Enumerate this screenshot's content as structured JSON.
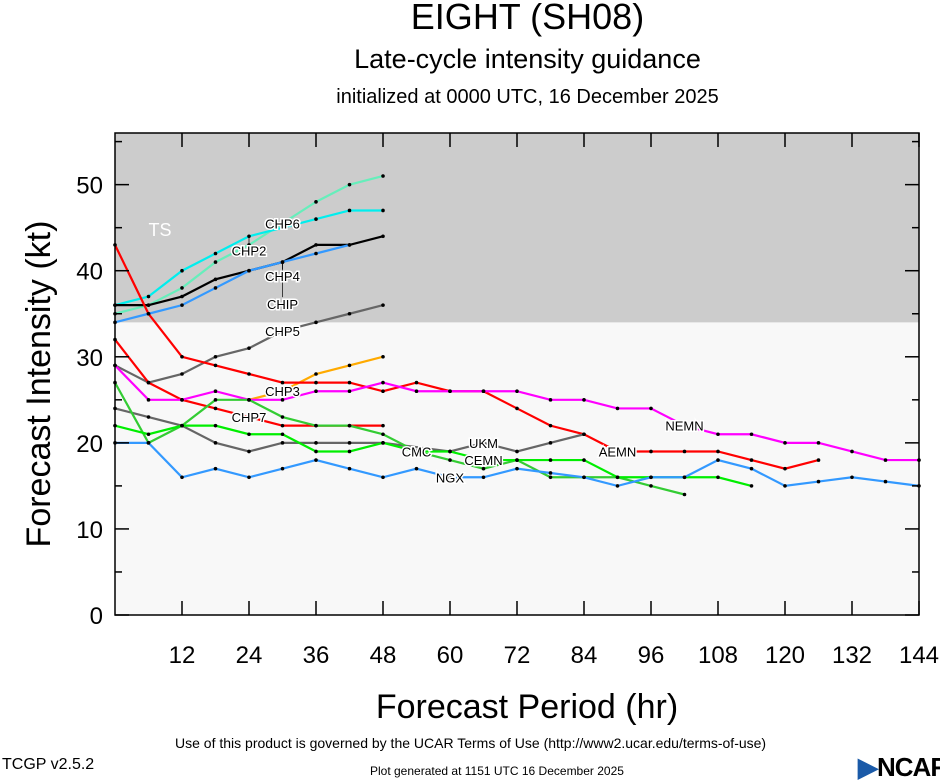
{
  "chart_data": {
    "type": "line",
    "title": "EIGHT (SH08)",
    "subtitle": "Late-cycle intensity guidance",
    "initialized": "initialized at 0000 UTC, 16 December 2025",
    "xlabel": "Forecast Period (hr)",
    "ylabel": "Forecast Intensity (kt)",
    "xlim": [
      0,
      144
    ],
    "ylim": [
      0,
      56
    ],
    "x_ticks": [
      12,
      24,
      36,
      48,
      60,
      72,
      84,
      96,
      108,
      120,
      132,
      144
    ],
    "y_ticks": [
      0,
      10,
      20,
      30,
      40,
      50
    ],
    "shaded_band": {
      "label": "TS",
      "from": 34,
      "to": 56,
      "color": "#cccccc"
    },
    "series": [
      {
        "name": "CHP6",
        "color": "#66eebb",
        "x": [
          0,
          6,
          12,
          18,
          24,
          30,
          36,
          42,
          48
        ],
        "values": [
          35,
          36,
          38,
          41,
          43,
          45.5,
          48,
          50,
          51
        ],
        "label_at": 30
      },
      {
        "name": "CHP2",
        "color": "#00eeee",
        "x": [
          0,
          6,
          12,
          18,
          24,
          30,
          36,
          42,
          48
        ],
        "values": [
          36,
          37,
          40,
          42,
          44,
          45,
          46,
          47,
          47
        ],
        "label_at": 24
      },
      {
        "name": "CHP4",
        "color": "#000000",
        "x": [
          0,
          6,
          12,
          18,
          24,
          30,
          36,
          42,
          48
        ],
        "values": [
          36,
          36,
          37,
          39,
          40,
          41,
          43,
          43,
          44
        ],
        "label_at": 30
      },
      {
        "name": "CHIP",
        "color": "#3399ff",
        "x": [
          0,
          6,
          12,
          18,
          24,
          30,
          36,
          42
        ],
        "values": [
          34,
          35,
          36,
          38,
          40,
          41,
          42,
          43
        ],
        "label_at": 30
      },
      {
        "name": "CHP5",
        "color": "#666666",
        "x": [
          0,
          6,
          12,
          18,
          24,
          30,
          36,
          42,
          48
        ],
        "values": [
          29,
          27,
          28,
          30,
          31,
          33,
          34,
          35,
          36
        ],
        "label_at": 30
      },
      {
        "name": "CHP3",
        "color": "#ffaa00",
        "x": [
          24,
          30,
          36,
          42,
          48
        ],
        "values": [
          25,
          26,
          28,
          29,
          30
        ],
        "label_at": 30
      },
      {
        "name": "AEMN",
        "color": "#ff0000",
        "x": [
          0,
          6,
          12,
          18,
          24,
          30,
          36,
          42,
          48,
          54,
          60,
          66,
          72,
          78,
          84,
          90,
          96,
          102,
          108,
          114,
          120,
          126
        ],
        "values": [
          43,
          35,
          30,
          29,
          28,
          27,
          27,
          27,
          26,
          27,
          26,
          26,
          24,
          22,
          21,
          19,
          19,
          19,
          19,
          18,
          17,
          18
        ],
        "label_at": 90
      },
      {
        "name": "CHP7",
        "color": "#ff0000",
        "x": [
          0,
          6,
          12,
          18,
          24,
          30,
          36,
          42,
          48
        ],
        "values": [
          32,
          27,
          25,
          24,
          23,
          22,
          22,
          22,
          22
        ],
        "label_at": 24
      },
      {
        "name": "NEMN",
        "color": "#ff00ff",
        "x": [
          0,
          6,
          12,
          18,
          24,
          30,
          36,
          42,
          48,
          54,
          60,
          66,
          72,
          78,
          84,
          90,
          96,
          102,
          108,
          114,
          120,
          126,
          132,
          138,
          144
        ],
        "values": [
          29,
          25,
          25,
          26,
          25,
          25,
          26,
          26,
          27,
          26,
          26,
          26,
          26,
          25,
          25,
          24,
          24,
          22,
          21,
          21,
          20,
          20,
          19,
          18,
          18
        ],
        "label_at": 102
      },
      {
        "name": "UKM",
        "color": "#666666",
        "x": [
          0,
          6,
          12,
          18,
          24,
          30,
          36,
          42,
          48,
          60,
          66,
          72,
          78,
          84
        ],
        "values": [
          24,
          23,
          22,
          20,
          19,
          20,
          20,
          20,
          20,
          19,
          20,
          19,
          20,
          21
        ],
        "label_at": 66
      },
      {
        "name": "CMC",
        "color": "#33cc33",
        "x": [
          0,
          6,
          12,
          18,
          24,
          30,
          36,
          42,
          48,
          54,
          60,
          66,
          72,
          78,
          84,
          90,
          96,
          102
        ],
        "values": [
          27,
          20,
          22,
          25,
          25,
          23,
          22,
          22,
          21,
          19,
          18,
          17,
          18,
          16,
          16,
          16,
          15,
          14
        ],
        "label_at": 54
      },
      {
        "name": "CEMN",
        "color": "#00ee00",
        "x": [
          0,
          6,
          12,
          18,
          24,
          30,
          36,
          42,
          48,
          54,
          60,
          66,
          72,
          78,
          84,
          90,
          96,
          102,
          108,
          114
        ],
        "values": [
          22,
          21,
          22,
          22,
          21,
          21,
          19,
          19,
          20,
          19,
          19,
          18,
          18,
          18,
          18,
          16,
          16,
          16,
          16,
          15
        ],
        "label_at": 66
      },
      {
        "name": "NGX",
        "color": "#3399ff",
        "x": [
          0,
          6,
          12,
          18,
          24,
          30,
          36,
          42,
          48,
          54,
          60,
          66,
          72,
          78,
          84,
          90,
          96,
          102,
          108,
          114,
          120,
          126,
          132,
          138,
          144
        ],
        "values": [
          20,
          20,
          16,
          17,
          16,
          17,
          18,
          17,
          16,
          17,
          16,
          16,
          17,
          16.5,
          16,
          15,
          16,
          16,
          18,
          17,
          15,
          15.5,
          16,
          15.5,
          15
        ],
        "label_at": 60
      }
    ]
  },
  "footer": {
    "terms": "Use of this product is governed by the UCAR Terms of Use (http://www2.ucar.edu/terms-of-use)",
    "version": "TCGP v2.5.2",
    "generated": "Plot generated at 1151 UTC   16 December 2025",
    "logo": "NCAR"
  }
}
